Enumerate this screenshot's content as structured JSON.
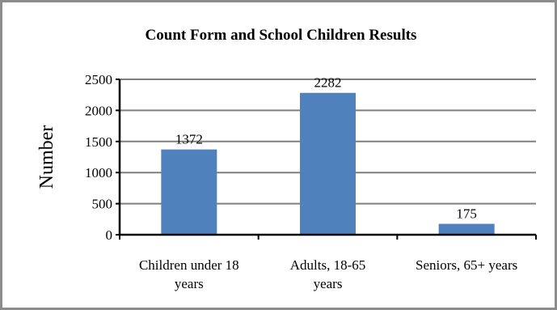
{
  "chart_data": {
    "type": "bar",
    "title": "Count Form and School Children Results",
    "ylabel": "Number",
    "xlabel": "",
    "ylim": [
      0,
      2500
    ],
    "yticks": [
      0,
      500,
      1000,
      1500,
      2000,
      2500
    ],
    "grid": true,
    "categories": [
      [
        "Children under 18",
        "years"
      ],
      [
        "Adults, 18-65",
        "years"
      ],
      [
        "Seniors, 65+ years"
      ]
    ],
    "values": [
      1372,
      2282,
      175
    ],
    "data_labels": [
      "1372",
      "2282",
      "175"
    ],
    "bar_color": "#4f81bd",
    "gridline_color": "#7f7f7f"
  }
}
